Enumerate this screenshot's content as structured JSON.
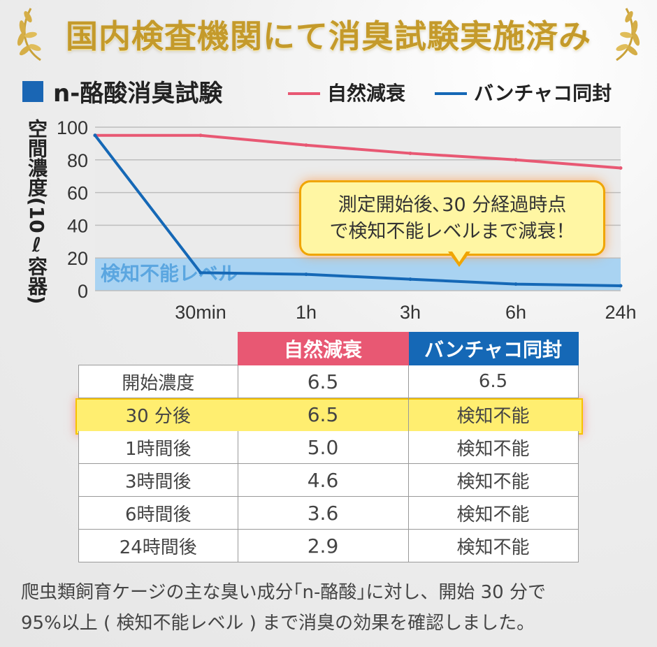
{
  "header": {
    "title": "国内検査機関にて消臭試験実施済み",
    "accent_color": "#c49a2b"
  },
  "legend": {
    "title": "n-酪酸消臭試験",
    "items": [
      {
        "label": "自然減衰",
        "color": "#e85873"
      },
      {
        "label": "バンチャコ同封",
        "color": "#1568b6"
      }
    ]
  },
  "callout": {
    "line1": "測定開始後､30 分経過時点",
    "line2": "で検知不能レベルまで減衰！"
  },
  "chart_data": {
    "type": "line",
    "ylabel": "空間濃度(10ℓ容器)",
    "x": [
      "0",
      "30min",
      "1h",
      "3h",
      "6h",
      "24h"
    ],
    "x_tick_labels": [
      "30min",
      "1h",
      "3h",
      "6h",
      "24h"
    ],
    "ylim": [
      0,
      100
    ],
    "y_ticks": [
      0,
      20,
      40,
      60,
      80,
      100
    ],
    "grid": true,
    "band": {
      "label": "検知不能レベル",
      "from": 0,
      "to": 20
    },
    "series": [
      {
        "name": "自然減衰",
        "color": "#e85873",
        "values": [
          95,
          95,
          89,
          84,
          80,
          75
        ]
      },
      {
        "name": "バンチャコ同封",
        "color": "#1568b6",
        "values": [
          95,
          11,
          10,
          7,
          4,
          3
        ]
      }
    ]
  },
  "table": {
    "headers": [
      "",
      "自然減衰",
      "バンチャコ同封"
    ],
    "rows": [
      [
        "開始濃度",
        "6.5",
        "6.5"
      ],
      [
        "30 分後",
        "6.5",
        "検知不能"
      ],
      [
        "1時間後",
        "5.0",
        "検知不能"
      ],
      [
        "3時間後",
        "4.6",
        "検知不能"
      ],
      [
        "6時間後",
        "3.6",
        "検知不能"
      ],
      [
        "24時間後",
        "2.9",
        "検知不能"
      ]
    ],
    "highlight_row": 1
  },
  "footer": {
    "line1": "爬虫類飼育ケージの主な臭い成分｢n-酪酸｣に対し、開始 30 分で",
    "line2": "95%以上 ( 検知不能レベル ) まで消臭の効果を確認しました。"
  }
}
